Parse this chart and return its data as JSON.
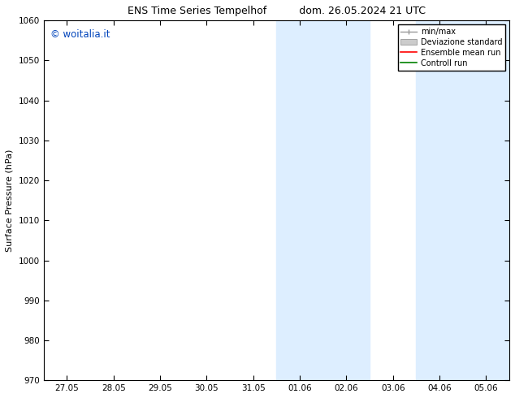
{
  "title_left": "ENS Time Series Tempelhof",
  "title_right": "dom. 26.05.2024 21 UTC",
  "ylabel": "Surface Pressure (hPa)",
  "ylim": [
    970,
    1060
  ],
  "yticks": [
    970,
    980,
    990,
    1000,
    1010,
    1020,
    1030,
    1040,
    1050,
    1060
  ],
  "xtick_labels": [
    "27.05",
    "28.05",
    "29.05",
    "30.05",
    "31.05",
    "01.06",
    "02.06",
    "03.06",
    "04.06",
    "05.06"
  ],
  "xtick_positions": [
    0,
    1,
    2,
    3,
    4,
    5,
    6,
    7,
    8,
    9
  ],
  "shaded_blocks": [
    {
      "xmin": 4.5,
      "xmax": 5.5
    },
    {
      "xmin": 5.5,
      "xmax": 6.5
    },
    {
      "xmin": 7.5,
      "xmax": 8.5
    },
    {
      "xmin": 8.5,
      "xmax": 9.5
    }
  ],
  "shaded_color": "#ddeeff",
  "watermark": "© woitalia.it",
  "watermark_color": "#0044bb",
  "legend_items": [
    {
      "label": "min/max",
      "type": "errorbar",
      "color": "#999999"
    },
    {
      "label": "Deviazione standard",
      "type": "patch",
      "color": "#cccccc"
    },
    {
      "label": "Ensemble mean run",
      "type": "line",
      "color": "red"
    },
    {
      "label": "Controll run",
      "type": "line",
      "color": "green"
    }
  ],
  "bg_color": "#ffffff",
  "plot_bg_color": "#ffffff",
  "border_color": "#000000",
  "xlim": [
    -0.5,
    9.5
  ]
}
